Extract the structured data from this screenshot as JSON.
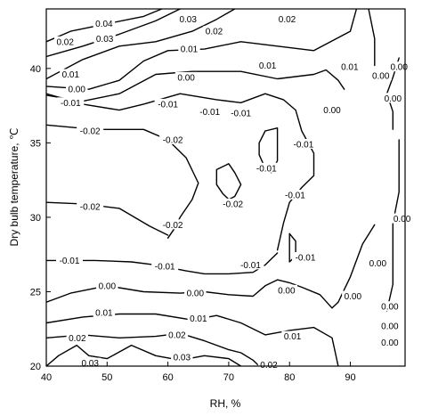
{
  "chart_data": {
    "type": "contour",
    "title": "",
    "xlabel": "RH, %",
    "ylabel": "Dry bulb temperature, ℃",
    "xlim": [
      40,
      99
    ],
    "ylim": [
      20,
      44
    ],
    "x_ticks": [
      40,
      50,
      60,
      70,
      80,
      90
    ],
    "y_ticks": [
      20,
      25,
      30,
      35,
      40
    ],
    "x_tick_labels": [
      "40",
      "50",
      "60",
      "70",
      "80",
      "90"
    ],
    "y_tick_labels": [
      "20",
      "25",
      "30",
      "35",
      "40"
    ],
    "grid": false,
    "legend": "none",
    "contours": [
      {
        "level": "0.04",
        "points": [
          [
            40,
            41.8
          ],
          [
            44,
            42.5
          ],
          [
            50,
            43
          ],
          [
            56,
            43.5
          ],
          [
            59,
            44
          ]
        ]
      },
      {
        "level": "0.03",
        "points": [
          [
            40,
            40.8
          ],
          [
            46,
            41.5
          ],
          [
            52,
            42.3
          ],
          [
            58,
            43.2
          ],
          [
            62,
            44
          ]
        ]
      },
      {
        "level": "0.02",
        "points": [
          [
            40,
            39.3
          ],
          [
            46,
            40.6
          ],
          [
            52,
            41.5
          ],
          [
            58,
            41.8
          ],
          [
            64,
            42.5
          ],
          [
            68,
            43.3
          ],
          [
            71,
            44
          ]
        ]
      },
      {
        "level": "0.01",
        "points": [
          [
            40,
            38.8
          ],
          [
            47,
            38.6
          ],
          [
            52,
            39.2
          ],
          [
            56,
            40.5
          ],
          [
            60,
            41.2
          ],
          [
            66,
            41.3
          ],
          [
            72,
            41.8
          ],
          [
            78,
            41.5
          ],
          [
            84,
            41.2
          ],
          [
            90,
            42.5
          ],
          [
            91,
            44
          ]
        ]
      },
      {
        "level": "0.00",
        "points": [
          [
            40,
            38.2
          ],
          [
            46,
            37.8
          ],
          [
            52,
            38.3
          ],
          [
            58,
            39.6
          ],
          [
            64,
            39.8
          ],
          [
            72,
            39.8
          ],
          [
            78,
            39.3
          ],
          [
            84,
            39.6
          ],
          [
            86,
            39.9
          ],
          [
            88,
            39.2
          ],
          [
            89,
            38.6
          ]
        ]
      },
      {
        "level": "-0.01",
        "points": [
          [
            40,
            38.3
          ],
          [
            46,
            37.6
          ],
          [
            52,
            37.2
          ],
          [
            56,
            37.6
          ],
          [
            62,
            38.3
          ],
          [
            68,
            37.9
          ],
          [
            72,
            37.7
          ],
          [
            76,
            38.3
          ],
          [
            79,
            37.9
          ],
          [
            81,
            37.2
          ],
          [
            82,
            35.8
          ],
          [
            84,
            34.3
          ],
          [
            84,
            32.8
          ],
          [
            82,
            32.0
          ],
          [
            80,
            31.0
          ],
          [
            79,
            29.6
          ],
          [
            78,
            27.8
          ]
        ]
      },
      {
        "level": "-0.02",
        "points": [
          [
            40,
            36.2
          ],
          [
            48,
            35.9
          ],
          [
            56,
            35.9
          ],
          [
            60,
            35.2
          ],
          [
            63,
            34.0
          ],
          [
            65,
            32.3
          ],
          [
            64,
            31.2
          ],
          [
            62,
            30.0
          ],
          [
            61,
            29.2
          ],
          [
            60,
            28.6
          ]
        ]
      },
      {
        "level": "-0.02",
        "points": [
          [
            40,
            31.0
          ],
          [
            46,
            30.9
          ],
          [
            52,
            30.6
          ],
          [
            57,
            29.4
          ],
          [
            60,
            28.8
          ]
        ]
      },
      {
        "level": "-0.02",
        "points": [
          [
            68,
            33.2
          ],
          [
            70,
            33.6
          ],
          [
            71,
            33.0
          ],
          [
            72,
            32.2
          ],
          [
            71,
            31.4
          ],
          [
            70,
            31.2
          ],
          [
            69,
            31.6
          ],
          [
            68,
            32.2
          ],
          [
            68,
            33.2
          ]
        ]
      },
      {
        "level": "-0.01",
        "points": [
          [
            76,
            35.8
          ],
          [
            78,
            36.0
          ],
          [
            78,
            33.8
          ],
          [
            77,
            33.0
          ],
          [
            76,
            33.3
          ],
          [
            75,
            34.2
          ],
          [
            75,
            35.0
          ],
          [
            76,
            35.8
          ]
        ]
      },
      {
        "level": "-0.01",
        "points": [
          [
            80,
            28.9
          ],
          [
            81,
            28.4
          ],
          [
            81,
            27.4
          ],
          [
            80,
            27.0
          ],
          [
            80,
            27.8
          ],
          [
            80,
            28.9
          ]
        ]
      },
      {
        "level": "-0.01",
        "points": [
          [
            40,
            27.1
          ],
          [
            48,
            27.1
          ],
          [
            54,
            27.0
          ],
          [
            58,
            26.8
          ],
          [
            63,
            26.4
          ],
          [
            66,
            26.2
          ],
          [
            70,
            26.2
          ],
          [
            74,
            26.3
          ],
          [
            76,
            26.8
          ],
          [
            78,
            27.6
          ]
        ]
      },
      {
        "level": "0.00",
        "points": [
          [
            40,
            24.3
          ],
          [
            44,
            24.9
          ],
          [
            50,
            25.4
          ],
          [
            56,
            25.0
          ],
          [
            62,
            24.9
          ],
          [
            66,
            25.0
          ],
          [
            70,
            24.8
          ],
          [
            74,
            24.7
          ],
          [
            76,
            25.4
          ],
          [
            78,
            25.8
          ],
          [
            80,
            25.6
          ],
          [
            82,
            25.3
          ],
          [
            85,
            24.8
          ],
          [
            87,
            23.9
          ],
          [
            88,
            24.3
          ],
          [
            90,
            26.0
          ],
          [
            92,
            28.2
          ],
          [
            94,
            29.5
          ]
        ]
      },
      {
        "level": "0.01",
        "points": [
          [
            40,
            22.9
          ],
          [
            46,
            23.3
          ],
          [
            52,
            23.5
          ],
          [
            58,
            23.5
          ],
          [
            64,
            23.1
          ],
          [
            68,
            23.4
          ],
          [
            72,
            22.9
          ],
          [
            76,
            22.1
          ],
          [
            80,
            22.4
          ],
          [
            84,
            22.6
          ],
          [
            87,
            21.9
          ],
          [
            88,
            20.0
          ]
        ]
      },
      {
        "level": "0.02",
        "points": [
          [
            40,
            21.9
          ],
          [
            46,
            22.1
          ],
          [
            52,
            21.9
          ],
          [
            58,
            22.0
          ],
          [
            62,
            22.2
          ],
          [
            66,
            21.7
          ],
          [
            70,
            21.1
          ],
          [
            72,
            20.9
          ],
          [
            74,
            20.4
          ],
          [
            75,
            20.0
          ]
        ]
      },
      {
        "level": "0.03",
        "points": [
          [
            40,
            20.0
          ],
          [
            42,
            20.7
          ],
          [
            45,
            21.4
          ],
          [
            47,
            20.7
          ],
          [
            50,
            20.5
          ],
          [
            54,
            21.4
          ],
          [
            58,
            20.7
          ],
          [
            62,
            20.4
          ],
          [
            66,
            20.7
          ],
          [
            70,
            20.5
          ],
          [
            72,
            20.0
          ]
        ]
      },
      {
        "level": "0.00",
        "points": [
          [
            98,
            40.7
          ],
          [
            97,
            39.4
          ],
          [
            96,
            38.3
          ],
          [
            97,
            37.1
          ],
          [
            97,
            35.9
          ]
        ]
      },
      {
        "level": "0.00",
        "points": [
          [
            93,
            44.0
          ],
          [
            94,
            42.0
          ],
          [
            94,
            40.8
          ],
          [
            94,
            40.2
          ]
        ]
      },
      {
        "level": "0.00",
        "points": [
          [
            96,
            23.7
          ],
          [
            97,
            25.5
          ],
          [
            97,
            27.4
          ],
          [
            97,
            29.6
          ],
          [
            98,
            31.7
          ],
          [
            98,
            33.8
          ],
          [
            98,
            35.2
          ]
        ]
      }
    ],
    "labels": [
      {
        "text": "0.04",
        "x": 49.5,
        "y": 43.0
      },
      {
        "text": "0.03",
        "x": 63.3,
        "y": 43.3
      },
      {
        "text": "0.02",
        "x": 79.6,
        "y": 43.3
      },
      {
        "text": "0.02",
        "x": 43.1,
        "y": 41.8
      },
      {
        "text": "0.03",
        "x": 49.6,
        "y": 42.0
      },
      {
        "text": "0.02",
        "x": 67.6,
        "y": 42.5
      },
      {
        "text": "0.01",
        "x": 63.5,
        "y": 41.3
      },
      {
        "text": "0.01",
        "x": 76.4,
        "y": 40.2
      },
      {
        "text": "0.01",
        "x": 89.9,
        "y": 40.1
      },
      {
        "text": "0.00",
        "x": 98.0,
        "y": 40.1
      },
      {
        "text": "0.01",
        "x": 44.0,
        "y": 39.6
      },
      {
        "text": "0.00",
        "x": 45.0,
        "y": 38.6
      },
      {
        "text": "0.00",
        "x": 63.0,
        "y": 39.4
      },
      {
        "text": "0.00",
        "x": 95.0,
        "y": 39.5
      },
      {
        "text": "0.00",
        "x": 97.0,
        "y": 38.0
      },
      {
        "text": "-0.01",
        "x": 44.0,
        "y": 37.7
      },
      {
        "text": "-0.01",
        "x": 60.0,
        "y": 37.6
      },
      {
        "text": "-0.01",
        "x": 66.9,
        "y": 37.1
      },
      {
        "text": "-0.01",
        "x": 72.0,
        "y": 37.0
      },
      {
        "text": "0.00",
        "x": 87.0,
        "y": 37.2
      },
      {
        "text": "-0.02",
        "x": 47.2,
        "y": 35.8
      },
      {
        "text": "-0.02",
        "x": 60.8,
        "y": 35.2
      },
      {
        "text": "-0.01",
        "x": 82.3,
        "y": 34.9
      },
      {
        "text": "-0.01",
        "x": 76.2,
        "y": 33.3
      },
      {
        "text": "-0.02",
        "x": 47.2,
        "y": 30.7
      },
      {
        "text": "-0.02",
        "x": 70.7,
        "y": 30.9
      },
      {
        "text": "-0.01",
        "x": 80.9,
        "y": 31.5
      },
      {
        "text": "-0.02",
        "x": 60.8,
        "y": 29.5
      },
      {
        "text": "0.00",
        "x": 98.5,
        "y": 29.9
      },
      {
        "text": "-0.01",
        "x": 43.8,
        "y": 27.1
      },
      {
        "text": "-0.01",
        "x": 59.5,
        "y": 26.7
      },
      {
        "text": "-0.01",
        "x": 73.6,
        "y": 26.8
      },
      {
        "text": "-0.01",
        "x": 82.6,
        "y": 27.3
      },
      {
        "text": "0.00",
        "x": 94.5,
        "y": 26.9
      },
      {
        "text": "0.00",
        "x": 50.0,
        "y": 25.4
      },
      {
        "text": "0.00",
        "x": 64.5,
        "y": 24.9
      },
      {
        "text": "0.00",
        "x": 79.5,
        "y": 25.1
      },
      {
        "text": "0.00",
        "x": 90.4,
        "y": 24.7
      },
      {
        "text": "0.00",
        "x": 96.5,
        "y": 24.0
      },
      {
        "text": "0.01",
        "x": 49.5,
        "y": 23.6
      },
      {
        "text": "0.01",
        "x": 65.0,
        "y": 23.2
      },
      {
        "text": "0.01",
        "x": 80.5,
        "y": 22.0
      },
      {
        "text": "0.00",
        "x": 96.5,
        "y": 22.7
      },
      {
        "text": "0.02",
        "x": 45.1,
        "y": 21.9
      },
      {
        "text": "0.02",
        "x": 61.5,
        "y": 22.1
      },
      {
        "text": "0.00",
        "x": 96.5,
        "y": 21.6
      },
      {
        "text": "0.03",
        "x": 47.2,
        "y": 20.2
      },
      {
        "text": "0.03",
        "x": 62.3,
        "y": 20.6
      },
      {
        "text": "0.02",
        "x": 76.6,
        "y": 20.1
      }
    ]
  }
}
